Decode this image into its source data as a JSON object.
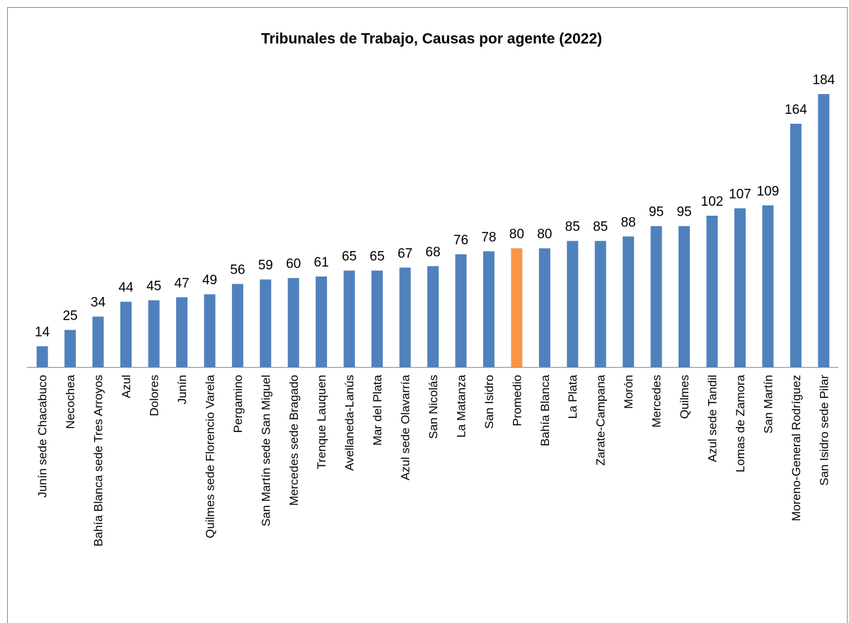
{
  "chart_data": {
    "type": "bar",
    "title": "Tribunales de Trabajo, Causas por agente (2022)",
    "categories": [
      "Junín sede Chacabuco",
      "Necochea",
      "Bahía Blanca sede Tres Arroyos",
      "Azul",
      "Dolores",
      "Junín",
      "Quilmes sede Florencio Varela",
      "Pergamino",
      "San Martín sede San Miguel",
      "Mercedes sede Bragado",
      "Trenque Lauquen",
      "Avellaneda-Lanús",
      "Mar del Plata",
      "Azul sede Olavarría",
      "San Nicolás",
      "La Matanza",
      "San Isidro",
      "Promedio",
      "Bahía Blanca",
      "La Plata",
      "Zarate-Campana",
      "Morón",
      "Mercedes",
      "Quilmes",
      "Azul sede Tandil",
      "Lomas de Zamora",
      "San Martín",
      "Moreno-General Rodríguez",
      "San Isidro sede Pilar"
    ],
    "values": [
      14,
      25,
      34,
      44,
      45,
      47,
      49,
      56,
      59,
      60,
      61,
      65,
      65,
      67,
      68,
      76,
      78,
      80,
      80,
      85,
      85,
      88,
      95,
      95,
      102,
      107,
      109,
      164,
      184
    ],
    "colors": [
      "#4f81bd",
      "#4f81bd",
      "#4f81bd",
      "#4f81bd",
      "#4f81bd",
      "#4f81bd",
      "#4f81bd",
      "#4f81bd",
      "#4f81bd",
      "#4f81bd",
      "#4f81bd",
      "#4f81bd",
      "#4f81bd",
      "#4f81bd",
      "#4f81bd",
      "#4f81bd",
      "#4f81bd",
      "#f79646",
      "#4f81bd",
      "#4f81bd",
      "#4f81bd",
      "#4f81bd",
      "#4f81bd",
      "#4f81bd",
      "#4f81bd",
      "#4f81bd",
      "#4f81bd",
      "#4f81bd",
      "#4f81bd"
    ],
    "data_labels": true
  }
}
